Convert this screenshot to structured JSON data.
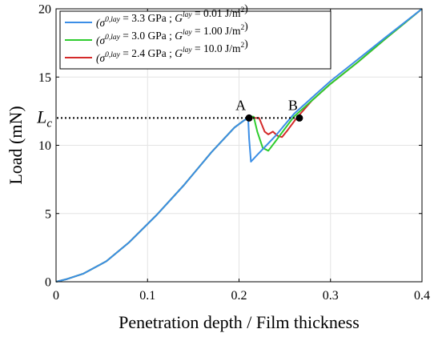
{
  "chart_data": {
    "type": "line",
    "xlabel": "Penetration depth / Film thickness",
    "ylabel": "Load (mN)",
    "xlim": [
      0,
      0.4
    ],
    "ylim": [
      0,
      20
    ],
    "xticks": [
      "0",
      "0.1",
      "0.2",
      "0.3",
      "0.4"
    ],
    "yticks": [
      "0",
      "5",
      "10",
      "15",
      "20"
    ],
    "grid": true,
    "legend": "top-left",
    "series": [
      {
        "name": "(σ^{0,lay} = 3.3 GPa ; G_c^{lay} = 0.01 J/m²)",
        "color": "#3b8ee6",
        "x": [
          0,
          0.012,
          0.03,
          0.055,
          0.08,
          0.11,
          0.14,
          0.17,
          0.195,
          0.205,
          0.21,
          0.211,
          0.213,
          0.22,
          0.23,
          0.24,
          0.25,
          0.26,
          0.28,
          0.3,
          0.33,
          0.36,
          0.4
        ],
        "y": [
          0,
          0.2,
          0.6,
          1.5,
          2.9,
          4.9,
          7.1,
          9.5,
          11.3,
          11.8,
          12.0,
          10.5,
          8.8,
          9.3,
          10.0,
          10.7,
          11.5,
          12.3,
          13.5,
          14.7,
          16.3,
          17.9,
          20.0
        ]
      },
      {
        "name": "(σ^{0,lay} = 3.0 GPa ; G_c^{lay} = 1.00 J/m²)",
        "color": "#2ecc2e",
        "x": [
          0,
          0.012,
          0.03,
          0.055,
          0.08,
          0.11,
          0.14,
          0.17,
          0.195,
          0.205,
          0.212,
          0.216,
          0.22,
          0.226,
          0.232,
          0.24,
          0.25,
          0.26,
          0.28,
          0.3,
          0.33,
          0.36,
          0.4
        ],
        "y": [
          0,
          0.2,
          0.6,
          1.5,
          2.9,
          4.9,
          7.1,
          9.5,
          11.3,
          11.8,
          12.1,
          12.1,
          11.0,
          9.8,
          9.6,
          10.3,
          11.2,
          12.1,
          13.3,
          14.5,
          16.1,
          17.8,
          20.0
        ]
      },
      {
        "name": "(σ^{0,lay} = 2.4 GPa ; G_c^{lay} = 10.0 J/m²)",
        "color": "#d42a2a",
        "x": [
          0,
          0.012,
          0.03,
          0.055,
          0.08,
          0.11,
          0.14,
          0.17,
          0.195,
          0.205,
          0.212,
          0.216,
          0.222,
          0.228,
          0.232,
          0.237,
          0.242,
          0.247,
          0.253,
          0.263,
          0.28,
          0.3,
          0.33,
          0.36,
          0.4
        ],
        "y": [
          0,
          0.2,
          0.6,
          1.5,
          2.9,
          4.9,
          7.1,
          9.5,
          11.3,
          11.8,
          12.1,
          12.0,
          12.0,
          11.0,
          10.8,
          11.0,
          10.7,
          10.6,
          11.1,
          12.0,
          13.3,
          14.5,
          16.1,
          17.8,
          20.0
        ]
      }
    ],
    "annotations": {
      "critical_load_label": "L",
      "critical_load_subscript": "c",
      "critical_load": 12.0,
      "point_a": {
        "label": "A",
        "x": 0.211,
        "y": 12.0
      },
      "point_b": {
        "label": "B",
        "x": 0.266,
        "y": 12.0
      }
    }
  }
}
